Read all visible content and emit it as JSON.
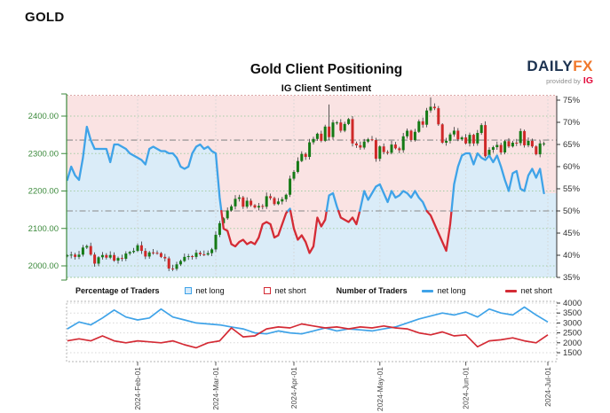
{
  "page": {
    "heading": "GOLD"
  },
  "chart": {
    "title": "Gold Client Positioning",
    "subtitle": "IG Client Sentiment"
  },
  "logo": {
    "daily": "DAILY",
    "fx": "FX",
    "provided_by": "provided by",
    "ig": "IG"
  },
  "legend": {
    "pct_group_label": "Percentage of Traders",
    "pct_net_long": "net long",
    "pct_net_short": "net short",
    "num_group_label": "Number of Traders",
    "num_net_long": "net long",
    "num_net_short": "net short"
  },
  "colors": {
    "net_long_line": "#3fa3e8",
    "net_short_line": "#d42b35",
    "long_fill": "#daecf8",
    "short_fill": "#fae3e3",
    "candle_up": "#157a15",
    "candle_down": "#cf2828",
    "wick": "#333333",
    "price_axis_green": "#3c8a3c",
    "pct_axis_dark": "#333333",
    "grid_green": "#a4cda4",
    "grid_gray": "#d4d4d4",
    "ref_line_gray": "#8a8a8a",
    "top_border": "#dcaaaa",
    "logo_navy": "#1c3250",
    "logo_orange": "#f0772b",
    "logo_ig_red": "#e30b3c"
  },
  "chart_data": [
    {
      "type": "candlestick+line",
      "title": "Gold Client Positioning",
      "subtitle": "IG Client Sentiment",
      "price_axis": {
        "side": "left",
        "labels": [
          "2400.00",
          "2300.00",
          "2200.00",
          "2100.00",
          "2000.00"
        ],
        "values": [
          2400,
          2300,
          2200,
          2100,
          2000
        ]
      },
      "pct_axis": {
        "side": "right",
        "labels": [
          "75%",
          "70%",
          "65%",
          "60%",
          "55%",
          "50%",
          "45%",
          "40%",
          "35%"
        ],
        "values": [
          75,
          70,
          65,
          60,
          55,
          50,
          45,
          40,
          35
        ],
        "range": [
          35,
          75
        ]
      },
      "x_axis": {
        "tick_labels": [
          "2024-Feb-01",
          "2024-Mar-01",
          "2024-Apr-01",
          "2024-May-01",
          "2024-Jun-01",
          "2024-Jul-01"
        ],
        "tick_day_indices": [
          18,
          38,
          58,
          80,
          102,
          123
        ]
      },
      "reference_lines": {
        "current_price": 2336,
        "neutral_pct": 50
      },
      "price_closes": [
        2028,
        2030,
        2024,
        2030,
        2049,
        2053,
        2030,
        2006,
        2023,
        2029,
        2022,
        2029,
        2014,
        2021,
        2019,
        2033,
        2037,
        2040,
        2055,
        2040,
        2025,
        2036,
        2035,
        2034,
        2024,
        2020,
        1993,
        1992,
        2004,
        2013,
        2024,
        2026,
        2024,
        2035,
        2031,
        2030,
        2034,
        2044,
        2083,
        2114,
        2127,
        2148,
        2159,
        2179,
        2183,
        2158,
        2174,
        2162,
        2156,
        2160,
        2158,
        2186,
        2181,
        2165,
        2172,
        2178,
        2190,
        2233,
        2251,
        2280,
        2299,
        2291,
        2330,
        2339,
        2353,
        2334,
        2372,
        2344,
        2383,
        2383,
        2361,
        2379,
        2392,
        2327,
        2322,
        2316,
        2332,
        2338,
        2336,
        2286,
        2319,
        2304,
        2302,
        2324,
        2314,
        2309,
        2346,
        2361,
        2336,
        2358,
        2386,
        2377,
        2415,
        2425,
        2421,
        2378,
        2329,
        2334,
        2351,
        2361,
        2338,
        2343,
        2327,
        2350,
        2327,
        2355,
        2376,
        2293,
        2310,
        2317,
        2323,
        2303,
        2333,
        2319,
        2329,
        2328,
        2360,
        2322,
        2334,
        2319,
        2298,
        2327,
        2327
      ],
      "wick_high_overrides": {
        "67": 2431,
        "93": 2450
      },
      "net_long_pct": [
        57,
        60,
        58,
        57,
        62,
        69,
        66,
        64,
        64,
        64,
        64,
        61,
        65,
        65,
        64.5,
        64,
        63,
        62.5,
        62,
        61.5,
        60.5,
        64,
        64.5,
        64,
        63.5,
        63.5,
        63,
        63,
        62,
        60,
        59.5,
        60,
        63,
        64.5,
        65,
        64,
        64.5,
        63.5,
        63,
        53,
        46,
        45.5,
        42.5,
        42,
        43,
        43.5,
        42.5,
        43,
        42.5,
        44,
        47,
        47.5,
        47,
        44,
        44.5,
        47,
        49.5,
        50.5,
        46,
        43.5,
        44.5,
        43,
        40.5,
        42,
        48.5,
        46.5,
        48,
        53.5,
        54,
        51,
        48.5,
        48,
        47.5,
        48.5,
        47,
        50.5,
        54.5,
        52.5,
        54,
        55.5,
        56,
        54,
        52,
        54.5,
        53,
        53.5,
        54.5,
        54,
        53,
        54.5,
        53,
        52,
        50,
        49,
        47,
        45,
        43,
        41,
        47,
        56,
        60,
        62.5,
        63,
        63,
        60.5,
        63,
        62,
        61.5,
        62.5,
        61,
        62.5,
        60,
        57,
        54.5,
        58.5,
        59,
        55,
        54.5,
        58,
        59.5,
        57.5,
        59.5,
        54
      ]
    },
    {
      "type": "line",
      "name": "Number of Traders",
      "y_axis": {
        "side": "right",
        "labels": [
          "4000",
          "3500",
          "3000",
          "2500",
          "2000",
          "1500"
        ],
        "values": [
          4000,
          3500,
          3000,
          2500,
          2000,
          1500
        ]
      },
      "series": [
        {
          "name": "net long",
          "color_key": "net_long_line",
          "stride": 3,
          "values": [
            2700,
            3050,
            2900,
            3250,
            3650,
            3300,
            3150,
            3250,
            3700,
            3300,
            3150,
            3000,
            2950,
            2900,
            2800,
            2700,
            2500,
            2450,
            2600,
            2500,
            2450,
            2600,
            2750,
            2600,
            2700,
            2650,
            2600,
            2700,
            2800,
            3000,
            3200,
            3350,
            3500,
            3400,
            3550,
            3300,
            3700,
            3500,
            3400,
            3800,
            3400,
            3050
          ]
        },
        {
          "name": "net short",
          "color_key": "net_short_line",
          "stride": 3,
          "values": [
            2100,
            2200,
            2100,
            2350,
            2100,
            2000,
            2100,
            2050,
            2000,
            2100,
            1900,
            1750,
            2000,
            2100,
            2750,
            2300,
            2350,
            2700,
            2800,
            2750,
            2950,
            2850,
            2750,
            2800,
            2700,
            2800,
            2750,
            2850,
            2750,
            2700,
            2500,
            2400,
            2550,
            2350,
            2400,
            1800,
            2100,
            2150,
            2250,
            2100,
            2000,
            2400
          ]
        }
      ]
    }
  ]
}
